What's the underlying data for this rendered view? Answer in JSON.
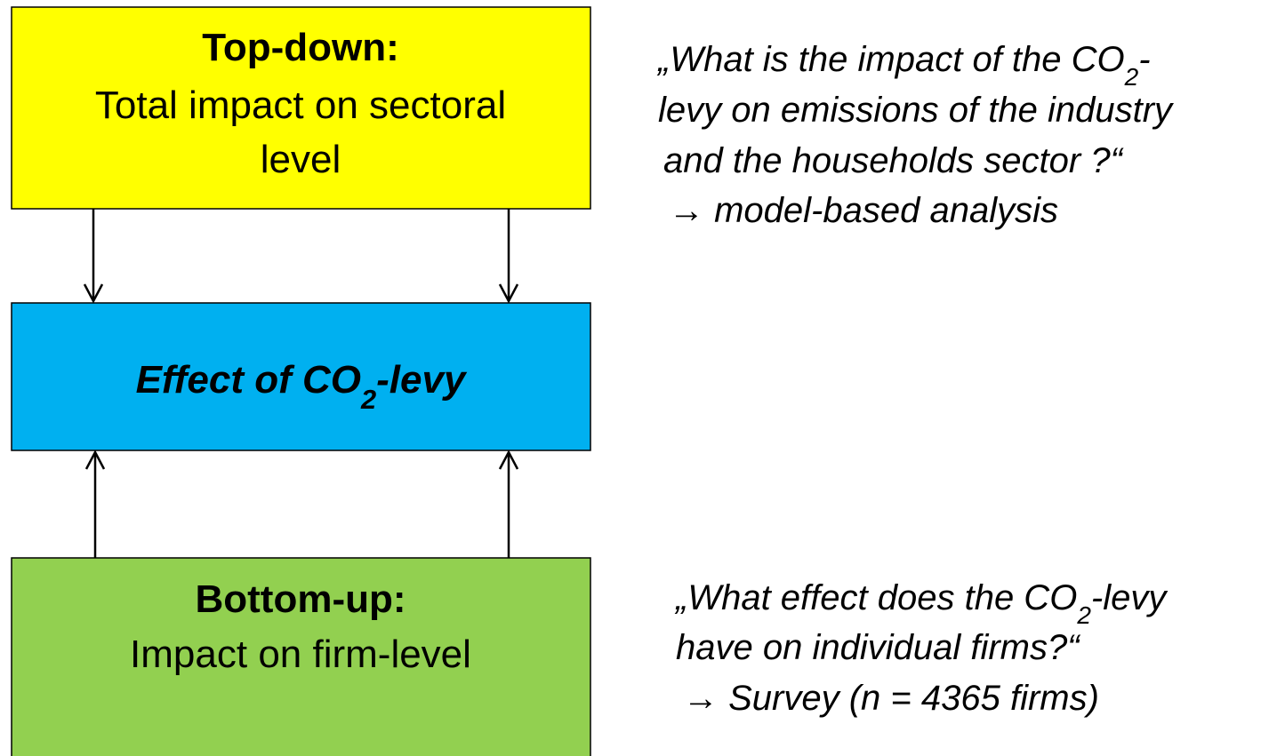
{
  "top_box": {
    "heading": "Top-down:",
    "lines": [
      "Total impact on sectoral",
      "level"
    ]
  },
  "middle_box": {
    "text": "Effect of CO",
    "sub": "2",
    "tail": "-levy"
  },
  "bottom_box": {
    "heading": "Bottom-up:",
    "lines": [
      "Impact on firm-level"
    ]
  },
  "top_question": {
    "lines": [
      {
        "text": "„What is the impact of the CO",
        "sub": "2",
        "tail": "-"
      },
      {
        "text": "levy on emissions of the industry"
      },
      {
        "text": "and the households sector ?“"
      },
      {
        "text": "→ model-based analysis"
      }
    ]
  },
  "bottom_question": {
    "lines": [
      {
        "text": "„What effect does the CO",
        "sub": "2",
        "tail": "-levy"
      },
      {
        "text": "have on individual firms?“"
      },
      {
        "text": "→ Survey (n = 4365 firms)"
      }
    ]
  }
}
